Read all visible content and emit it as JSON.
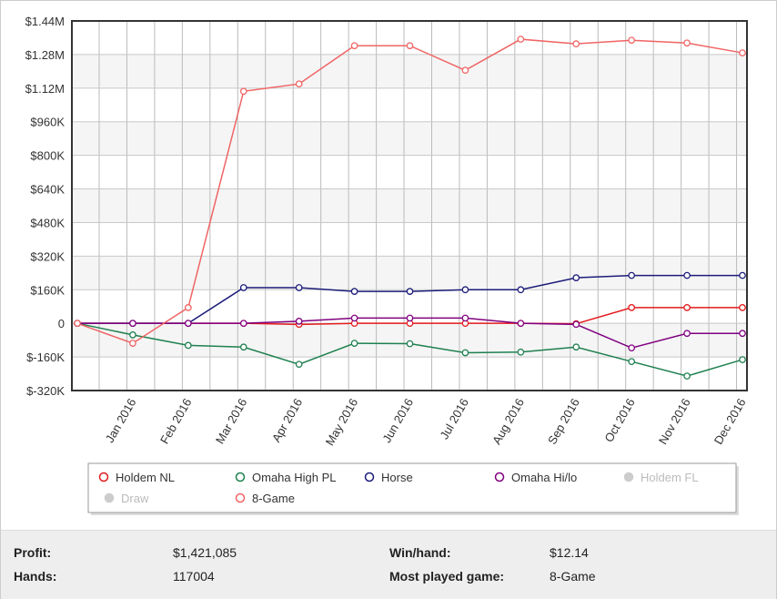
{
  "chart_data": {
    "type": "line",
    "categories": [
      null,
      "Jan 2016",
      "Feb 2016",
      "Mar 2016",
      "Apr 2016",
      "May 2016",
      "Jun 2016",
      "Jul 2016",
      "Aug 2016",
      "Sep 2016",
      "Oct 2016",
      "Nov 2016",
      "Dec 2016"
    ],
    "series": [
      {
        "name": "Holdem NL",
        "color": "#e41a1c",
        "values": [
          0,
          0,
          0,
          0,
          -5000,
          0,
          0,
          0,
          0,
          -2000,
          75000,
          75000,
          75000
        ]
      },
      {
        "name": "Omaha High PL",
        "color": "#1e8050",
        "values": [
          0,
          -55000,
          -105000,
          -113000,
          -195000,
          -95000,
          -97000,
          -140000,
          -137000,
          -113000,
          -182000,
          -251000,
          -173000
        ]
      },
      {
        "name": "Horse",
        "color": "#1c1c7a",
        "values": [
          0,
          0,
          0,
          170000,
          170000,
          152000,
          152000,
          160000,
          160000,
          217000,
          228000,
          228000,
          228000
        ]
      },
      {
        "name": "Omaha Hi/lo",
        "color": "#800080",
        "values": [
          0,
          0,
          0,
          0,
          10000,
          25000,
          25000,
          25000,
          0,
          -5000,
          -117000,
          -48000,
          -48000
        ]
      },
      {
        "name": "Holdem FL",
        "color": "#cccccc",
        "visible": false
      },
      {
        "name": "Draw",
        "color": "#cccccc",
        "visible": false
      },
      {
        "name": "8-Game",
        "color": "#f06464",
        "values": [
          0,
          -95000,
          75000,
          1105000,
          1140000,
          1322000,
          1322000,
          1205000,
          1353000,
          1331000,
          1348000,
          1335000,
          1288000
        ]
      }
    ],
    "ylim": [
      -320000,
      1440000
    ],
    "yticks": [
      {
        "value": -320000,
        "label": "$-320K"
      },
      {
        "value": -160000,
        "label": "$-160K"
      },
      0,
      {
        "value": 160000,
        "label": "$160K"
      },
      {
        "value": 320000,
        "label": "$320K"
      },
      {
        "value": 480000,
        "label": "$480K"
      },
      {
        "value": 640000,
        "label": "$640K"
      },
      {
        "value": 800000,
        "label": "$800K"
      },
      {
        "value": 960000,
        "label": "$960K"
      },
      {
        "value": 1120000,
        "label": "$1.12M"
      },
      {
        "value": 1280000,
        "label": "$1.28M"
      },
      {
        "value": 1440000,
        "label": "$1.44M"
      }
    ],
    "grid": true
  },
  "stats": {
    "profit_label": "Profit:",
    "profit": "$1,421,085",
    "winhand_label": "Win/hand:",
    "winhand": "$12.14",
    "hands_label": "Hands:",
    "hands": "117004",
    "most_played_label": "Most played game:",
    "most_played": "8-Game"
  }
}
